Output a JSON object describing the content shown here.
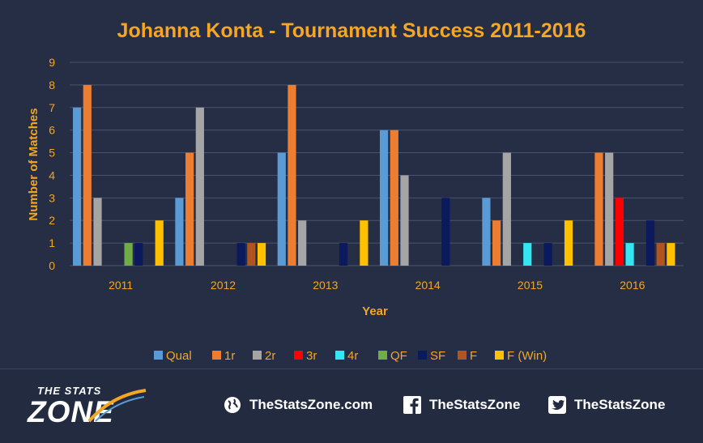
{
  "chart_data": {
    "type": "bar",
    "title": "Johanna Konta - Tournament Success 2011-2016",
    "xlabel": "Year",
    "ylabel": "Number of Matches",
    "ylim": [
      0,
      9
    ],
    "yticks": [
      "0",
      "1",
      "2",
      "3",
      "4",
      "5",
      "6",
      "7",
      "8",
      "9"
    ],
    "categories": [
      "2011",
      "2012",
      "2013",
      "2014",
      "2015",
      "2016"
    ],
    "grid": true,
    "legend_position": "bottom",
    "series": [
      {
        "name": "Qual",
        "color": "#5b9bd5",
        "values": [
          7,
          3,
          5,
          6,
          3,
          0
        ]
      },
      {
        "name": "1r",
        "color": "#ed7d31",
        "values": [
          8,
          5,
          8,
          6,
          2,
          5
        ]
      },
      {
        "name": "2r",
        "color": "#a5a5a5",
        "values": [
          3,
          7,
          2,
          4,
          5,
          5
        ]
      },
      {
        "name": "3r",
        "color": "#ff0000",
        "values": [
          0,
          0,
          0,
          0,
          0,
          3
        ]
      },
      {
        "name": "4r",
        "color": "#33e6f2",
        "values": [
          0,
          0,
          0,
          0,
          1,
          1
        ]
      },
      {
        "name": "QF",
        "color": "#70ad47",
        "values": [
          1,
          0,
          0,
          0,
          0,
          0
        ]
      },
      {
        "name": "SF",
        "color": "#0a1a5c",
        "values": [
          1,
          1,
          1,
          3,
          1,
          2
        ]
      },
      {
        "name": "F",
        "color": "#b05420",
        "values": [
          0,
          1,
          0,
          0,
          0,
          1
        ]
      },
      {
        "name": "F (Win)",
        "color": "#ffc000",
        "values": [
          2,
          1,
          2,
          0,
          2,
          1
        ]
      }
    ]
  },
  "colors": {
    "background": "#252e44",
    "text_accent": "#f5a623",
    "gridline": "#4a5470"
  },
  "footer": {
    "logo_line1": "THE STATS",
    "logo_line2": "ZONE",
    "website_label": "TheStatsZone.com",
    "facebook_label": "TheStatsZone",
    "twitter_label": "TheStatsZone",
    "icons": {
      "website": "globe-icon",
      "facebook": "facebook-icon",
      "twitter": "twitter-icon"
    }
  }
}
